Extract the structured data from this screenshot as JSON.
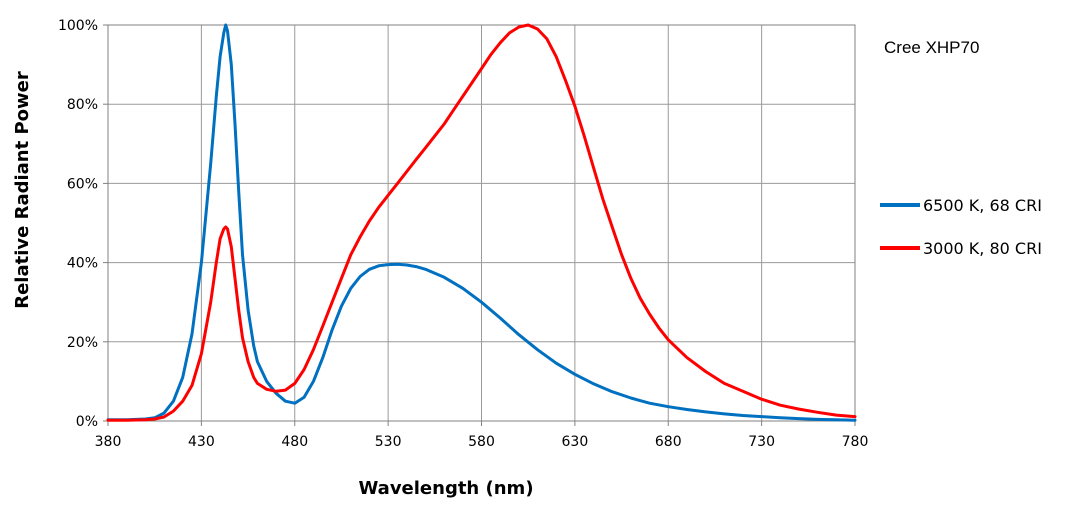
{
  "chart_data": {
    "type": "line",
    "annotation": "Cree XHP70",
    "xlabel": "Wavelength (nm)",
    "ylabel": "Relative Radiant Power",
    "xlim": [
      380,
      780
    ],
    "ylim": [
      0,
      100
    ],
    "x_ticks": [
      "380",
      "430",
      "480",
      "530",
      "580",
      "630",
      "680",
      "730",
      "780"
    ],
    "y_ticks": [
      "0%",
      "20%",
      "40%",
      "60%",
      "80%",
      "100%"
    ],
    "grid": true,
    "legend_position": "right",
    "series": [
      {
        "name": "6500 K, 68 CRI",
        "color": "#0070C0",
        "x": [
          380,
          390,
          400,
          405,
          410,
          415,
          420,
          425,
          430,
          435,
          438,
          440,
          442,
          443,
          444,
          446,
          448,
          450,
          452,
          455,
          458,
          460,
          465,
          470,
          475,
          480,
          485,
          490,
          495,
          500,
          505,
          510,
          515,
          520,
          525,
          530,
          535,
          540,
          545,
          550,
          555,
          560,
          570,
          580,
          590,
          600,
          610,
          620,
          630,
          640,
          650,
          660,
          670,
          680,
          690,
          700,
          710,
          720,
          730,
          740,
          750,
          760,
          770,
          780
        ],
        "y": [
          0.3,
          0.3,
          0.5,
          0.8,
          2,
          5,
          11,
          22,
          40,
          65,
          82,
          92,
          98,
          100,
          98.5,
          90,
          75,
          58,
          42,
          28,
          19,
          15,
          10,
          7,
          5,
          4.5,
          6,
          10,
          16,
          23,
          29,
          33.5,
          36.5,
          38.3,
          39.2,
          39.5,
          39.6,
          39.4,
          39,
          38.3,
          37.3,
          36.3,
          33.5,
          30,
          26,
          21.8,
          18,
          14.6,
          11.8,
          9.4,
          7.4,
          5.8,
          4.5,
          3.6,
          2.9,
          2.3,
          1.8,
          1.4,
          1.1,
          0.8,
          0.6,
          0.4,
          0.3,
          0.2
        ]
      },
      {
        "name": "3000 K, 80 CRI",
        "color": "#FF0000",
        "x": [
          380,
          390,
          400,
          405,
          410,
          415,
          420,
          425,
          430,
          435,
          438,
          440,
          442,
          443,
          444,
          446,
          448,
          450,
          452,
          455,
          458,
          460,
          465,
          470,
          475,
          480,
          485,
          490,
          495,
          500,
          505,
          510,
          515,
          520,
          525,
          530,
          535,
          540,
          545,
          550,
          555,
          560,
          565,
          570,
          575,
          580,
          585,
          590,
          595,
          600,
          605,
          610,
          615,
          620,
          625,
          630,
          635,
          640,
          645,
          650,
          655,
          660,
          665,
          670,
          675,
          680,
          690,
          700,
          710,
          720,
          730,
          740,
          750,
          760,
          770,
          780
        ],
        "y": [
          0.2,
          0.2,
          0.3,
          0.5,
          1,
          2.5,
          5,
          9,
          17,
          30,
          40,
          46,
          48.5,
          49,
          48.5,
          44,
          36,
          28,
          21,
          15,
          11,
          9.5,
          8,
          7.5,
          7.8,
          9.5,
          13,
          18,
          24,
          30,
          36,
          42,
          46.5,
          50.5,
          54,
          57,
          60,
          63,
          66,
          69,
          72,
          75,
          78.5,
          82,
          85.5,
          89,
          92.5,
          95.5,
          98,
          99.5,
          100,
          99,
          96.5,
          92,
          86,
          79.5,
          72,
          64,
          56,
          49,
          42,
          36,
          31,
          27,
          23.5,
          20.5,
          16,
          12.5,
          9.5,
          7.5,
          5.5,
          4,
          3,
          2.2,
          1.5,
          1.1
        ]
      }
    ]
  }
}
